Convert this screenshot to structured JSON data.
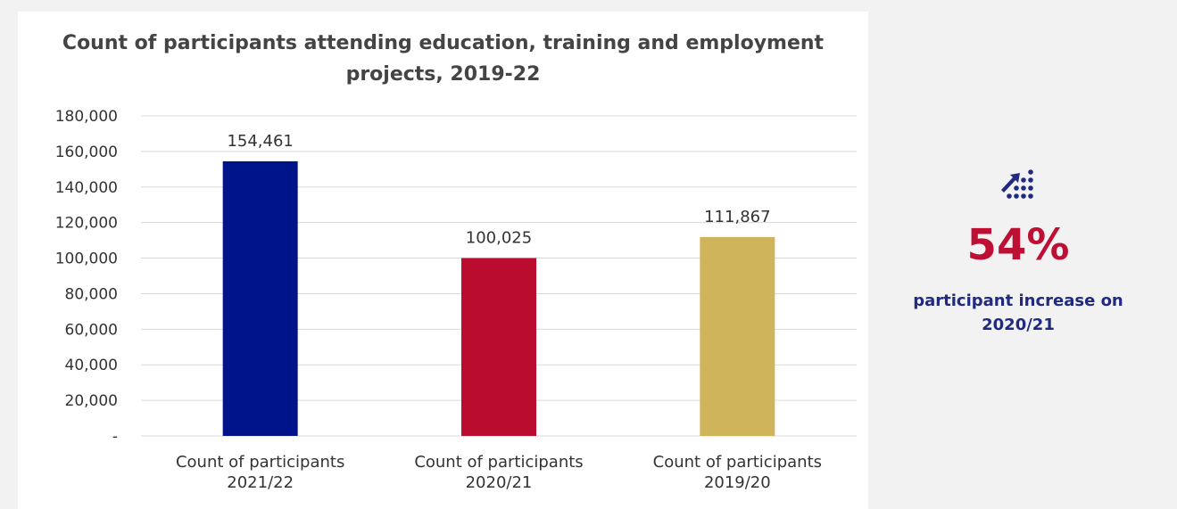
{
  "chart_data": {
    "type": "bar",
    "title": "Count of participants attending education, training and employment projects, 2019-22",
    "categories": [
      "Count of participants 2021/22",
      "Count of participants 2020/21",
      "Count of participants 2019/20"
    ],
    "category_lines": [
      [
        "Count of participants",
        "2021/22"
      ],
      [
        "Count of participants",
        "2020/21"
      ],
      [
        "Count of participants",
        "2019/20"
      ]
    ],
    "values": [
      154461,
      100025,
      111867
    ],
    "data_labels": [
      "154,461",
      "100,025",
      "111,867"
    ],
    "colors": [
      "#001489",
      "#ba0c2f",
      "#cfb45b"
    ],
    "ylim": [
      0,
      180000
    ],
    "yticks": [
      0,
      20000,
      40000,
      60000,
      80000,
      100000,
      120000,
      140000,
      160000,
      180000
    ],
    "ytick_labels": [
      "-",
      "20,000",
      "40,000",
      "60,000",
      "80,000",
      "100,000",
      "120,000",
      "140,000",
      "160,000",
      "180,000"
    ],
    "grid": true,
    "xlabel": "",
    "ylabel": ""
  },
  "kpi": {
    "icon": "growth-chart-icon",
    "value": "54%",
    "caption": "participant increase on 2020/21",
    "value_color": "#be0f34",
    "caption_color": "#1f2a80"
  }
}
